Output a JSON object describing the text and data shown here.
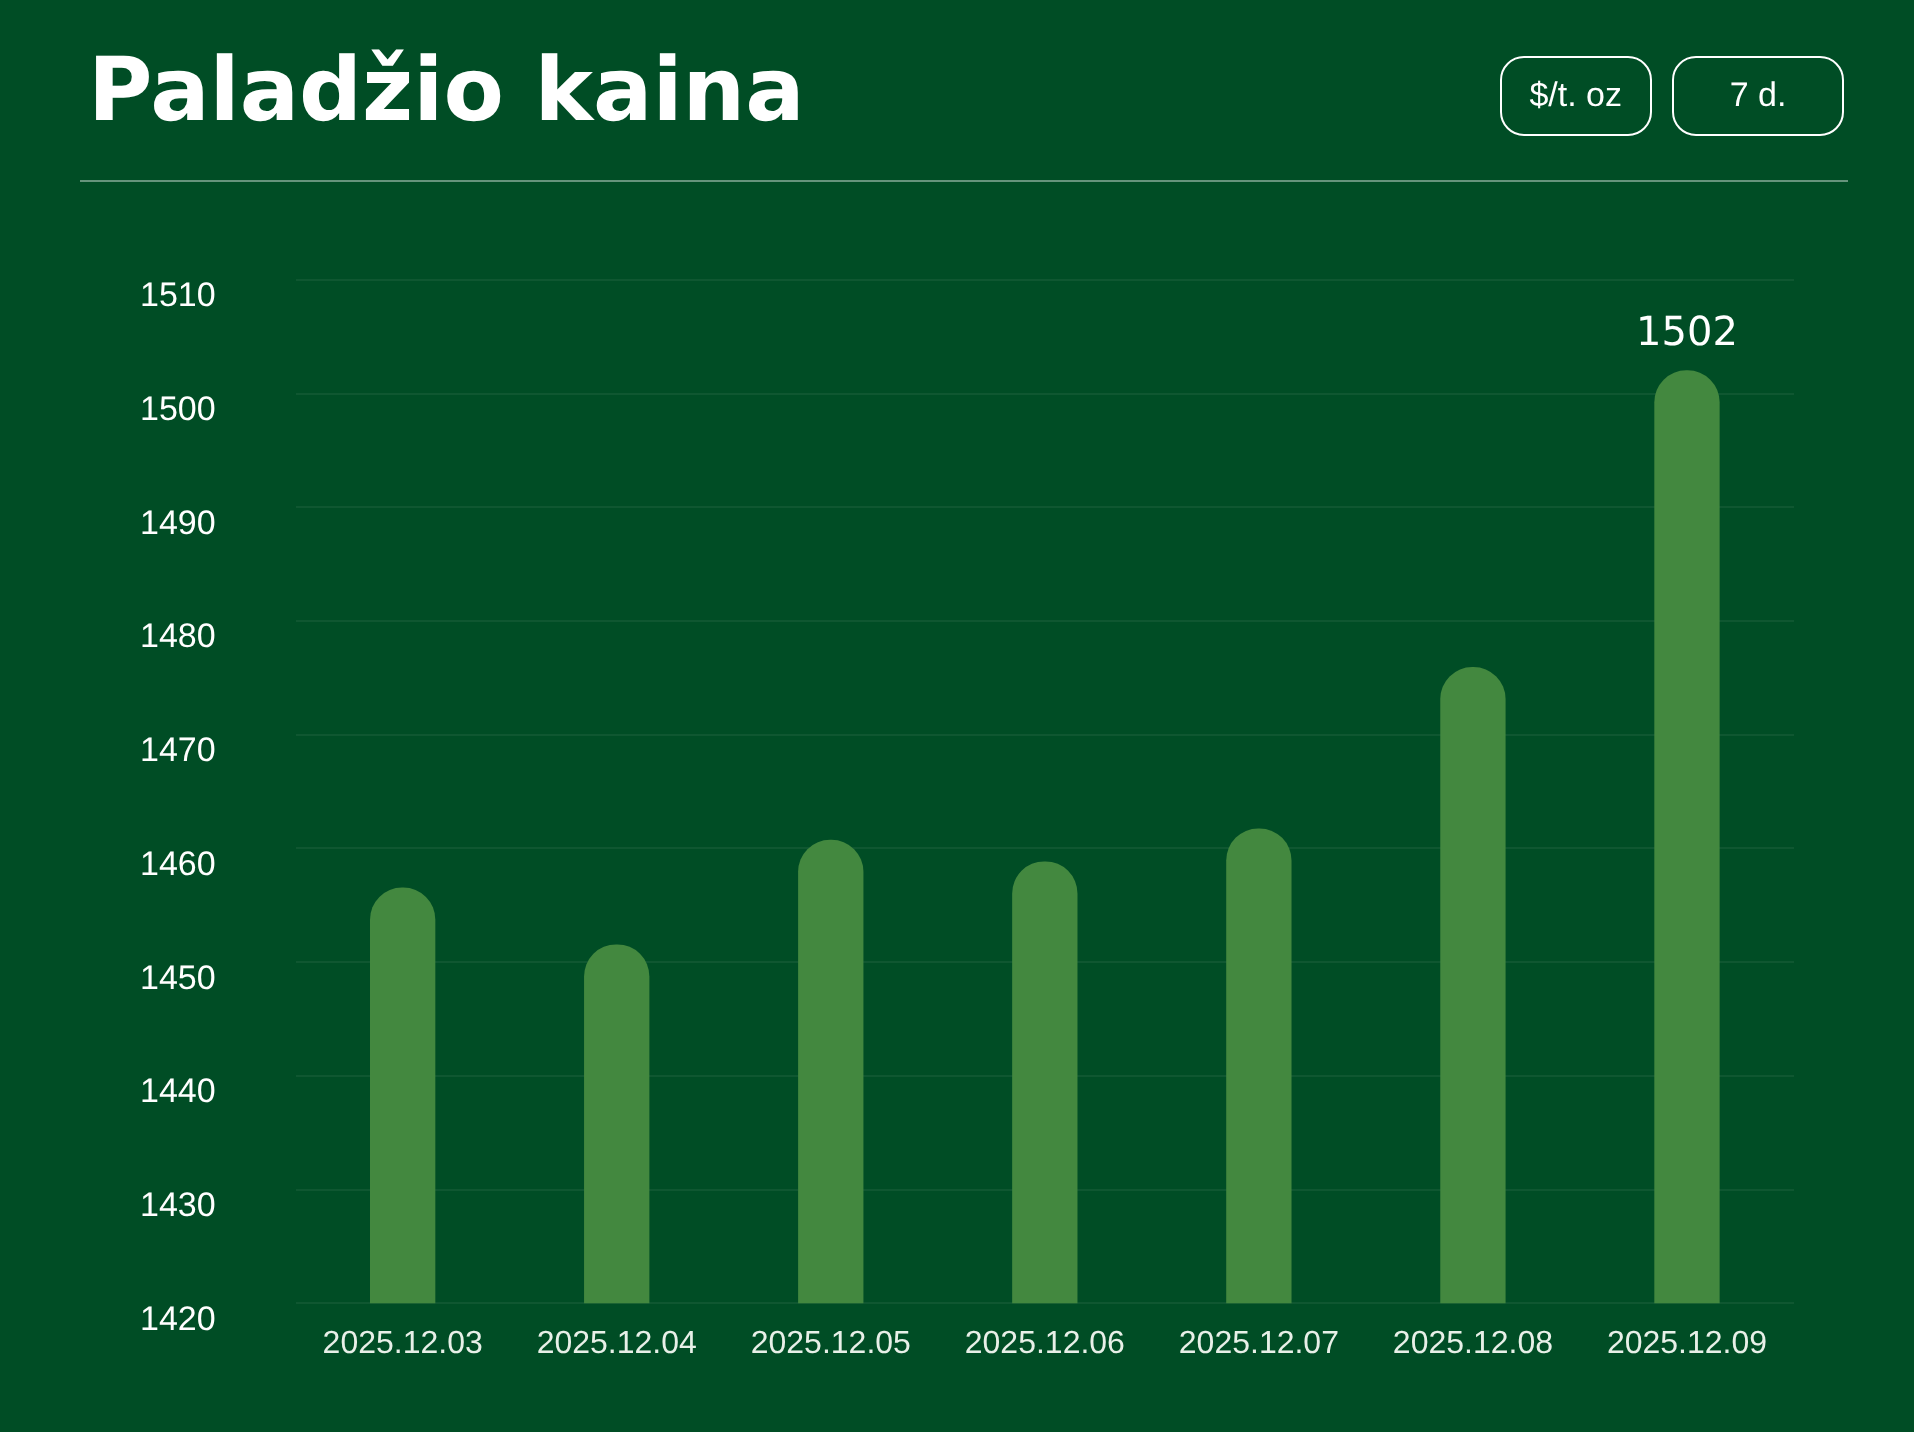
{
  "chart_data": {
    "type": "bar",
    "title": "Paladžio kaina",
    "annotations": [
      "$/t. oz",
      "7 d."
    ],
    "categories": [
      "2025.12.03",
      "2025.12.04",
      "2025.12.05",
      "2025.12.06",
      "2025.12.07",
      "2025.12.08",
      "2025.12.09"
    ],
    "values": [
      1456.5,
      1451.5,
      1460.7,
      1458.8,
      1461.7,
      1475.9,
      1502
    ],
    "value_labels": [
      null,
      null,
      null,
      null,
      null,
      null,
      "1502"
    ],
    "color": "#43883f",
    "ylim": [
      1420,
      1510
    ],
    "yticks": [
      1420,
      1430,
      1440,
      1450,
      1460,
      1470,
      1480,
      1490,
      1500,
      1510
    ],
    "grid": "y"
  }
}
